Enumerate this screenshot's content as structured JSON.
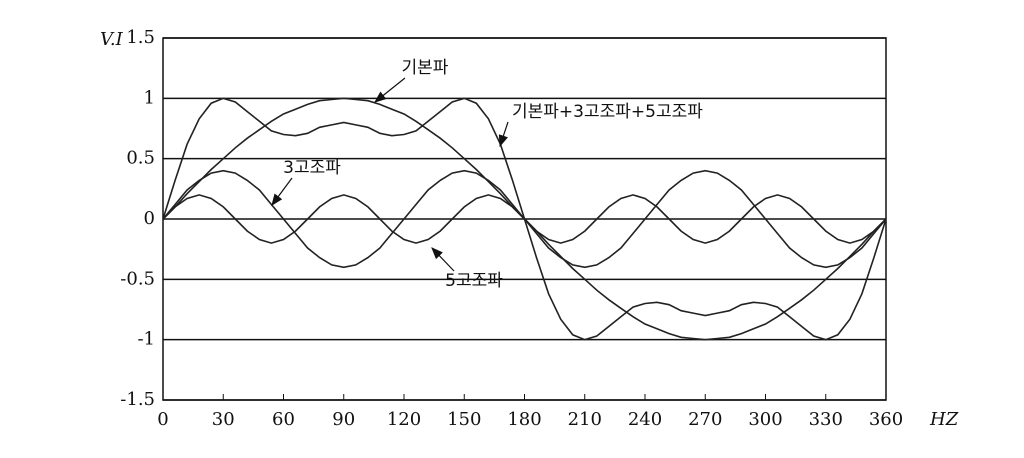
{
  "chart_data": {
    "type": "line",
    "x_label": "HZ",
    "y_label": "V.I",
    "x": [
      0,
      6,
      12,
      18,
      24,
      30,
      36,
      42,
      48,
      54,
      60,
      66,
      72,
      78,
      84,
      90,
      96,
      102,
      108,
      114,
      120,
      126,
      132,
      138,
      144,
      150,
      156,
      162,
      168,
      174,
      180,
      186,
      192,
      198,
      204,
      210,
      216,
      222,
      228,
      234,
      240,
      246,
      252,
      258,
      264,
      270,
      276,
      282,
      288,
      294,
      300,
      306,
      312,
      318,
      324,
      330,
      336,
      342,
      348,
      354,
      360
    ],
    "series": [
      {
        "name": "기본파",
        "color": "#222222",
        "values": [
          0,
          0.1,
          0.21,
          0.31,
          0.41,
          0.5,
          0.59,
          0.67,
          0.74,
          0.81,
          0.87,
          0.91,
          0.95,
          0.98,
          0.99,
          1,
          0.99,
          0.98,
          0.95,
          0.91,
          0.87,
          0.81,
          0.74,
          0.67,
          0.59,
          0.5,
          0.41,
          0.31,
          0.21,
          0.1,
          0,
          -0.1,
          -0.21,
          -0.31,
          -0.41,
          -0.5,
          -0.59,
          -0.67,
          -0.74,
          -0.81,
          -0.87,
          -0.91,
          -0.95,
          -0.98,
          -0.99,
          -1,
          -0.99,
          -0.98,
          -0.95,
          -0.91,
          -0.87,
          -0.81,
          -0.74,
          -0.67,
          -0.59,
          -0.5,
          -0.41,
          -0.31,
          -0.21,
          -0.1,
          0
        ]
      },
      {
        "name": "3고조파",
        "color": "#222222",
        "values": [
          0,
          0.12,
          0.24,
          0.32,
          0.38,
          0.4,
          0.38,
          0.32,
          0.24,
          0.12,
          0,
          -0.12,
          -0.24,
          -0.32,
          -0.38,
          -0.4,
          -0.38,
          -0.32,
          -0.24,
          -0.12,
          0,
          0.12,
          0.24,
          0.32,
          0.38,
          0.4,
          0.38,
          0.32,
          0.24,
          0.12,
          0,
          -0.12,
          -0.24,
          -0.32,
          -0.38,
          -0.4,
          -0.38,
          -0.32,
          -0.24,
          -0.12,
          0,
          0.12,
          0.24,
          0.32,
          0.38,
          0.4,
          0.38,
          0.32,
          0.24,
          0.12,
          0,
          -0.12,
          -0.24,
          -0.32,
          -0.38,
          -0.4,
          -0.38,
          -0.32,
          -0.24,
          -0.12,
          0
        ]
      },
      {
        "name": "5고조파",
        "color": "#222222",
        "values": [
          0,
          0.1,
          0.17,
          0.2,
          0.17,
          0.1,
          0,
          -0.1,
          -0.17,
          -0.2,
          -0.17,
          -0.1,
          0,
          0.1,
          0.17,
          0.2,
          0.17,
          0.1,
          0,
          -0.1,
          -0.17,
          -0.2,
          -0.17,
          -0.1,
          0,
          0.1,
          0.17,
          0.2,
          0.17,
          0.1,
          0,
          -0.1,
          -0.17,
          -0.2,
          -0.17,
          -0.1,
          0,
          0.1,
          0.17,
          0.2,
          0.17,
          0.1,
          0,
          -0.1,
          -0.17,
          -0.2,
          -0.17,
          -0.1,
          0,
          0.1,
          0.17,
          0.2,
          0.17,
          0.1,
          0,
          -0.1,
          -0.17,
          -0.2,
          -0.17,
          -0.1,
          0
        ]
      },
      {
        "name": "기본파+3고조파+5고조파",
        "color": "#222222",
        "values": [
          0,
          0.32,
          0.62,
          0.83,
          0.96,
          1.0,
          0.97,
          0.89,
          0.81,
          0.73,
          0.7,
          0.69,
          0.71,
          0.76,
          0.78,
          0.8,
          0.78,
          0.76,
          0.71,
          0.69,
          0.7,
          0.73,
          0.81,
          0.89,
          0.97,
          1.0,
          0.96,
          0.83,
          0.62,
          0.32,
          0,
          -0.32,
          -0.62,
          -0.83,
          -0.96,
          -1.0,
          -0.97,
          -0.89,
          -0.81,
          -0.73,
          -0.7,
          -0.69,
          -0.71,
          -0.76,
          -0.78,
          -0.8,
          -0.78,
          -0.76,
          -0.71,
          -0.69,
          -0.7,
          -0.73,
          -0.81,
          -0.89,
          -0.97,
          -1.0,
          -0.96,
          -0.83,
          -0.62,
          -0.32,
          0
        ]
      }
    ],
    "xlim": [
      0,
      360
    ],
    "xticks": [
      0,
      30,
      60,
      90,
      120,
      150,
      180,
      210,
      240,
      270,
      300,
      330,
      360
    ],
    "ylim": [
      -1.5,
      1.5
    ],
    "yticks": [
      -1.5,
      -1,
      -0.5,
      0,
      0.5,
      1,
      1.5
    ],
    "grid": true
  }
}
